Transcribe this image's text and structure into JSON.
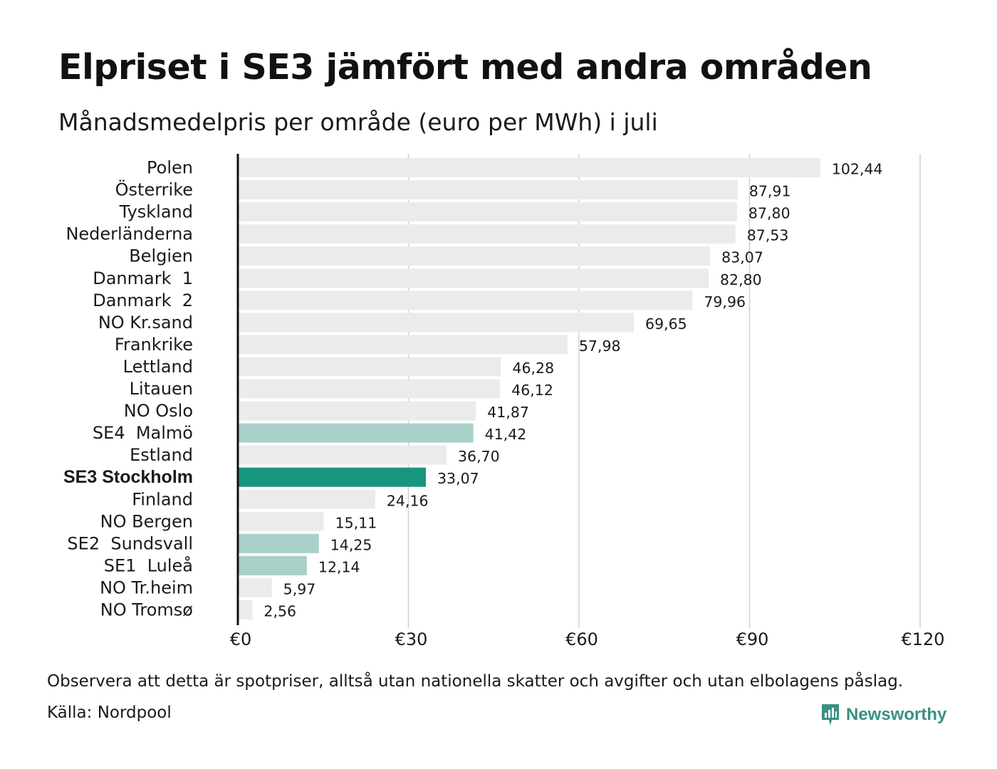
{
  "title": "Elpriset i SE3 jämfört med andra områden",
  "subtitle": "Månadsmedelpris per område (euro per MWh) i juli",
  "footer": {
    "note": "Observera att detta är spotpriser, alltså utan nationella skatter och avgifter och utan elbolagens påslag.",
    "source": "Källa: Nordpool",
    "brand": "Newsworthy",
    "brand_icon": "newsworthy-logo-icon"
  },
  "colors": {
    "default_bar": "#ebebeb",
    "se_bar": "#a8d0c9",
    "highlight_bar": "#17957f",
    "grid": "#d0d0d0",
    "axis": "#111111",
    "brand": "#3a8f83"
  },
  "chart_data": {
    "type": "bar",
    "orientation": "horizontal",
    "title": "Elpriset i SE3 jämfört med andra områden",
    "subtitle": "Månadsmedelpris per område (euro per MWh) i juli",
    "xlim": [
      0,
      120
    ],
    "x_ticks": [
      0,
      30,
      60,
      90,
      120
    ],
    "x_tick_labels": [
      "€0",
      "€30",
      "€60",
      "€90",
      "€120"
    ],
    "grid": true,
    "categories": [
      "Polen",
      "Österrike",
      "Tyskland",
      "Nederländerna",
      "Belgien",
      "Danmark  1",
      "Danmark  2",
      "NO Kr.sand",
      "Frankrike",
      "Lettland",
      "Litauen",
      "NO Oslo",
      "SE4  Malmö",
      "Estland",
      "SE3 Stockholm",
      "Finland",
      "NO Bergen",
      "SE2  Sundsvall",
      "SE1  Luleå",
      "NO Tr.heim",
      "NO Tromsø"
    ],
    "values": [
      102.44,
      87.91,
      87.8,
      87.53,
      83.07,
      82.8,
      79.96,
      69.65,
      57.98,
      46.28,
      46.12,
      41.87,
      41.42,
      36.7,
      33.07,
      24.16,
      15.11,
      14.25,
      12.14,
      5.97,
      2.56
    ],
    "value_labels": [
      "102,44",
      "87,91",
      "87,80",
      "87,53",
      "83,07",
      "82,80",
      "79,96",
      "69,65",
      "57,98",
      "46,28",
      "46,12",
      "41,87",
      "41,42",
      "36,70",
      "33,07",
      "24,16",
      "15,11",
      "14,25",
      "12,14",
      "5,97",
      "2,56"
    ],
    "bar_groups": [
      "default",
      "default",
      "default",
      "default",
      "default",
      "default",
      "default",
      "default",
      "default",
      "default",
      "default",
      "default",
      "se",
      "default",
      "highlight",
      "default",
      "default",
      "se",
      "se",
      "default",
      "default"
    ],
    "highlighted_category": "SE3 Stockholm"
  }
}
